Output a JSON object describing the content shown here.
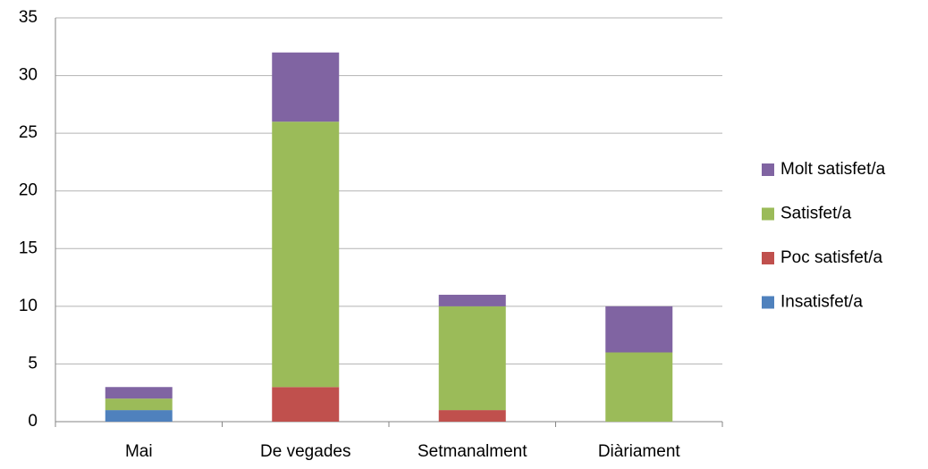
{
  "chart_data": {
    "type": "stacked_bar",
    "categories": [
      "Mai",
      "De vegades",
      "Setmanalment",
      "Diàriament"
    ],
    "series": [
      {
        "name": "Insatisfet/a",
        "color": "#4f81bd",
        "values": [
          1,
          0,
          0,
          0
        ]
      },
      {
        "name": "Poc satisfet/a",
        "color": "#c0504d",
        "values": [
          0,
          3,
          1,
          0
        ]
      },
      {
        "name": "Satisfet/a",
        "color": "#9bbb59",
        "values": [
          1,
          23,
          9,
          6
        ]
      },
      {
        "name": "Molt satisfet/a",
        "color": "#8064a2",
        "values": [
          1,
          6,
          1,
          4
        ]
      }
    ],
    "ylim": [
      0,
      35
    ],
    "yticks": [
      0,
      5,
      10,
      15,
      20,
      25,
      30,
      35
    ],
    "grid": true,
    "legend": "right"
  }
}
